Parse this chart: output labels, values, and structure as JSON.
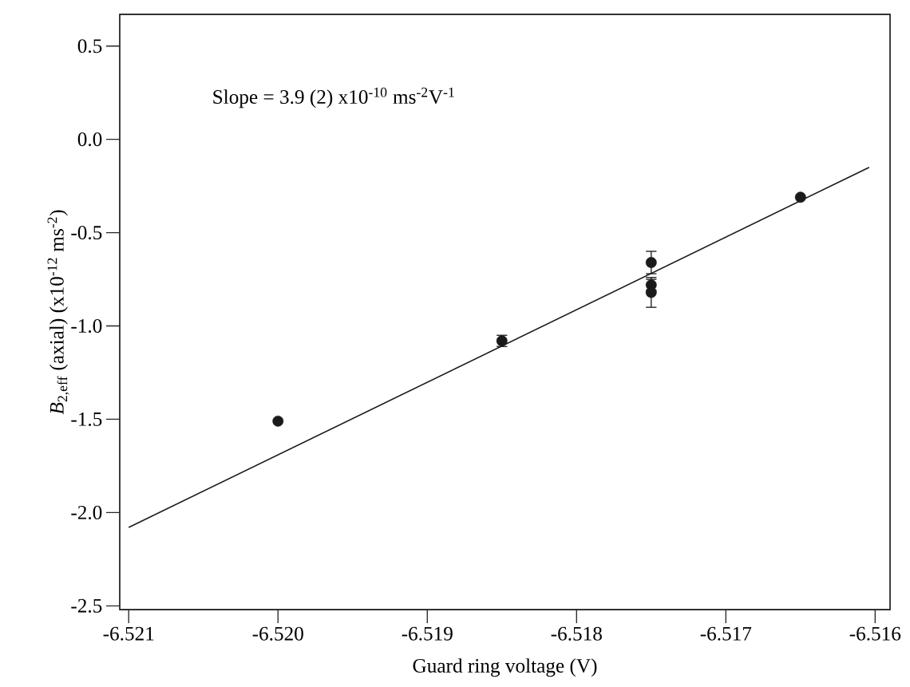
{
  "chart_data": {
    "type": "scatter",
    "xlabel": "Guard ring voltage (V)",
    "ylabel": "*B*$_{2,eff}$ (axial) (x10$^{-12}$ ms$^{-2}$)",
    "annotations": [
      "Slope = 3.9 (2) x10$^{-10}$ ms$^{-2}$V$^{-1}$"
    ],
    "xlim": [
      -6.52106,
      -6.5159
    ],
    "ylim": [
      -2.52,
      0.67
    ],
    "xticks": [
      -6.521,
      {
        "value": -6.52,
        "label": "-6.520"
      },
      -6.519,
      -6.518,
      -6.517,
      -6.516
    ],
    "yticks": [
      0.5,
      {
        "value": 0,
        "label": "0.0"
      },
      -0.5,
      {
        "value": -1,
        "label": "-1.0"
      },
      -1.5,
      {
        "value": -2,
        "label": "-2.0"
      },
      -2.5
    ],
    "grid": false,
    "series": [
      {
        "color": "#1a1a1a",
        "marker": "circle",
        "x": [
          -6.52,
          -6.5185,
          -6.5175,
          -6.5175,
          -6.5175,
          -6.5165
        ],
        "values": [
          -1.51,
          -1.08,
          -0.66,
          -0.78,
          -0.82,
          -0.31
        ],
        "errors": [
          null,
          0.03,
          0.06,
          0.03,
          0.08,
          null
        ]
      },
      {
        "type": "line",
        "color": "#1a1a1a",
        "marker": "none",
        "line_style": "solid",
        "x": [
          -6.521,
          -6.51604
        ],
        "values": [
          -2.08,
          -0.15
        ]
      }
    ]
  }
}
